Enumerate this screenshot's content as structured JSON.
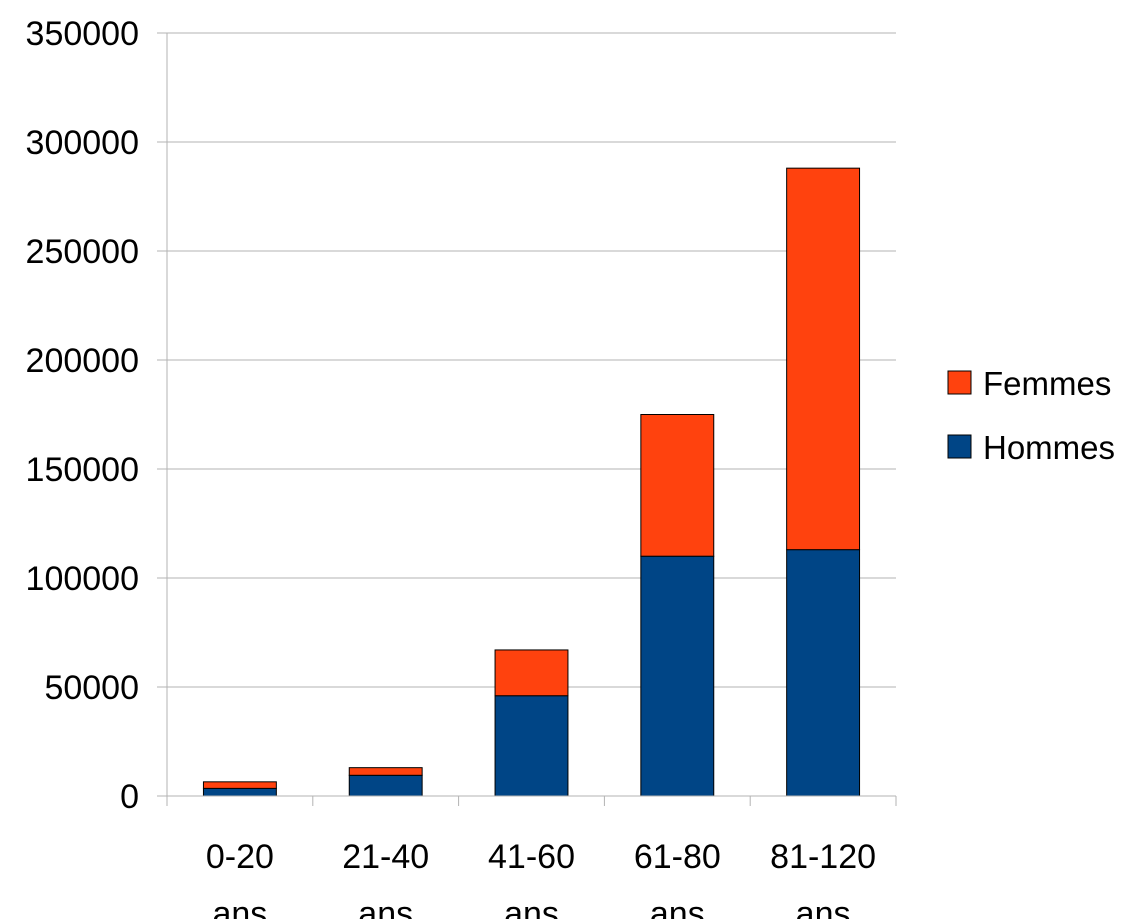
{
  "chart_data": {
    "type": "bar",
    "stacked": true,
    "title": "",
    "xlabel": "",
    "ylabel": "",
    "categories": [
      [
        "0-20",
        "ans"
      ],
      [
        "21-40",
        "ans"
      ],
      [
        "41-60",
        "ans"
      ],
      [
        "61-80",
        "ans"
      ],
      [
        "81-120",
        "ans"
      ]
    ],
    "series": [
      {
        "name": "Hommes",
        "color": "#004586",
        "values": [
          3500,
          9500,
          46000,
          110000,
          113000
        ]
      },
      {
        "name": "Femmes",
        "color": "#ff420e",
        "values": [
          3000,
          3500,
          21000,
          65000,
          175000
        ]
      }
    ],
    "ylim": [
      0,
      350000
    ],
    "yticks": [
      0,
      50000,
      100000,
      150000,
      200000,
      250000,
      300000,
      350000
    ],
    "grid": true,
    "legend": {
      "position": "right",
      "order": [
        "Femmes",
        "Hommes"
      ]
    }
  }
}
